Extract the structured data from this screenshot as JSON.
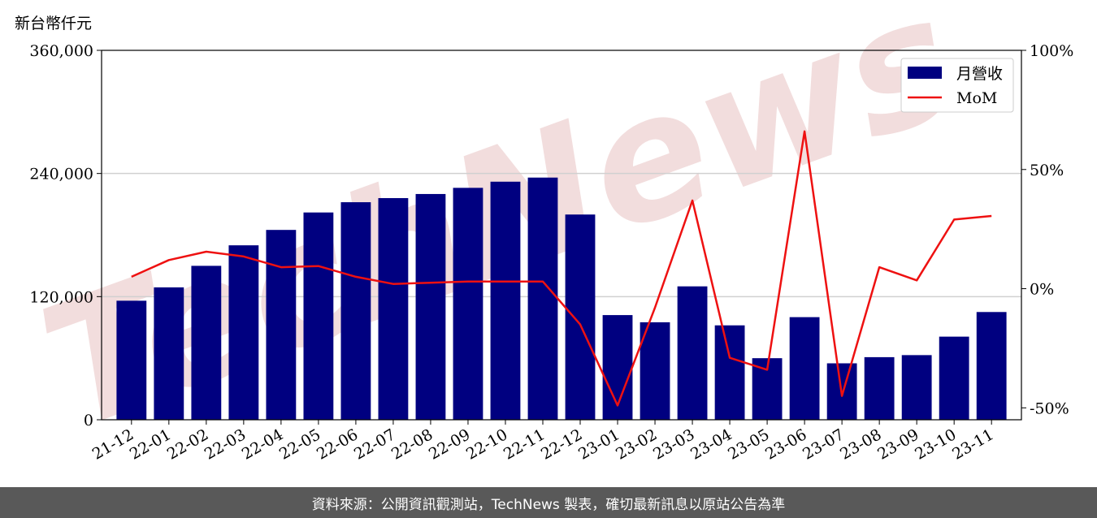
{
  "unit_label": "新台幣仟元",
  "footer_text": "資料來源：公開資訊觀測站，TechNews 製表，確切最新訊息以原站公告為準",
  "watermark_text": "TechNews",
  "colors": {
    "bar": "#000080",
    "line": "#ee1111",
    "grid": "#d0d0d0",
    "footer_bg": "#595959",
    "watermark": "#f0d8d8"
  },
  "chart_data": {
    "type": "bar",
    "categories": [
      "21-12",
      "22-01",
      "22-02",
      "22-03",
      "22-04",
      "22-05",
      "22-06",
      "22-07",
      "22-08",
      "22-09",
      "22-10",
      "22-11",
      "22-12",
      "23-01",
      "23-02",
      "23-03",
      "23-04",
      "23-05",
      "23-06",
      "23-07",
      "23-08",
      "23-09",
      "23-10",
      "23-11"
    ],
    "series": [
      {
        "name": "月營收",
        "type": "bar",
        "axis": "left",
        "values": [
          116000,
          129000,
          150000,
          170000,
          185000,
          202000,
          212000,
          216000,
          220000,
          226000,
          232000,
          236000,
          200000,
          102000,
          95000,
          130000,
          92000,
          60000,
          100000,
          55000,
          61000,
          63000,
          81000,
          105000
        ]
      },
      {
        "name": "MoM",
        "type": "line",
        "axis": "right",
        "values": [
          5,
          12,
          15.5,
          13.5,
          9,
          9.5,
          5,
          2,
          2.5,
          3,
          3,
          3,
          -15,
          -49,
          -8,
          37,
          -29,
          -34,
          66,
          -45,
          9,
          3.5,
          29,
          30.5
        ]
      }
    ],
    "y_left": {
      "ylim": [
        0,
        360000
      ],
      "ticks": [
        "0",
        "120,000",
        "240,000",
        "360,000"
      ],
      "tick_values": [
        0,
        120000,
        240000,
        360000
      ]
    },
    "y_right": {
      "ylim": [
        -55,
        100
      ],
      "ticks": [
        "-50%",
        "0%",
        "50%",
        "100%"
      ],
      "tick_values": [
        -50,
        0,
        50,
        100
      ]
    },
    "grid": true,
    "legend_position": "top-right"
  }
}
